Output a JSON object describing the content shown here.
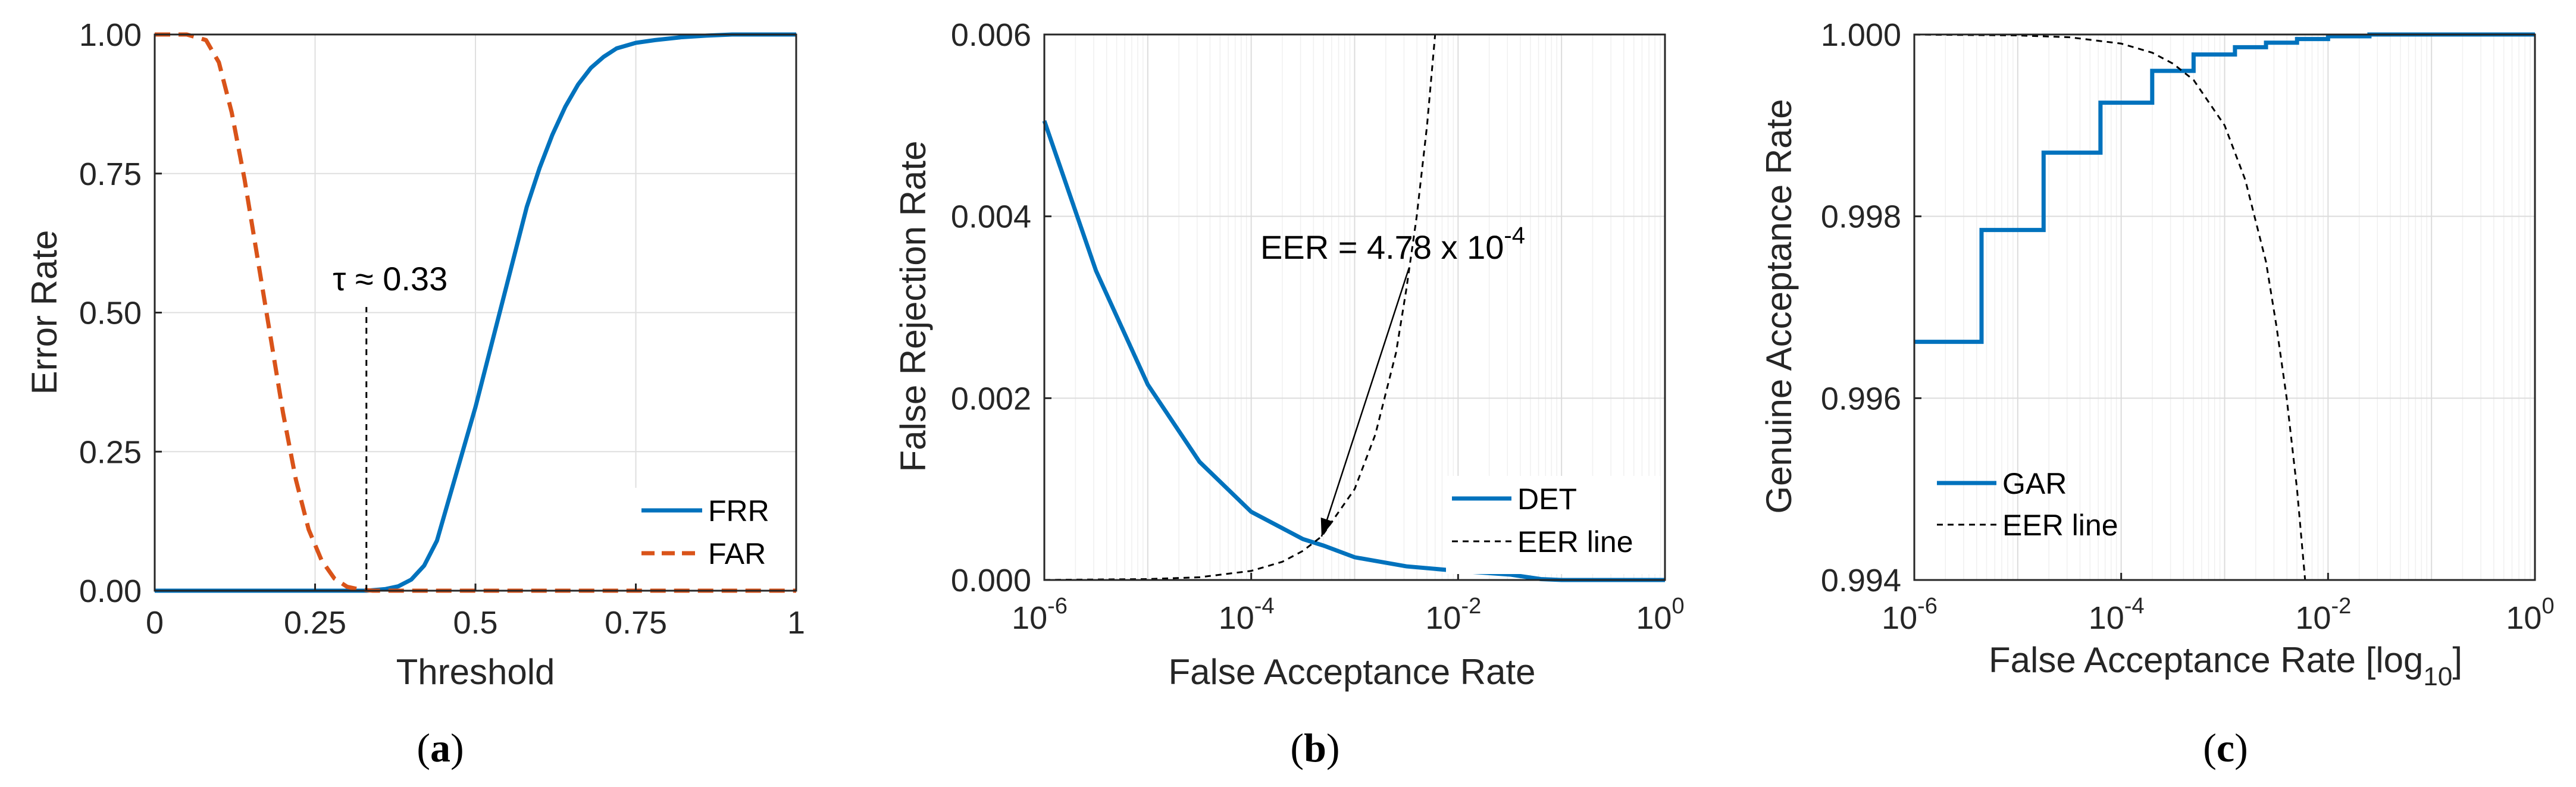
{
  "chart_data": [
    {
      "type": "line",
      "panel": "a",
      "caption": "(a)",
      "caption_letter": "a",
      "xlabel": "Threshold",
      "ylabel": "Error Rate",
      "xlim": [
        0,
        1
      ],
      "ylim": [
        0,
        1
      ],
      "x_ticks": [
        0,
        0.25,
        0.5,
        0.75,
        1
      ],
      "x_tick_labels": [
        "0",
        "0.25",
        "0.5",
        "0.75",
        "1"
      ],
      "y_ticks": [
        0,
        0.25,
        0.5,
        0.75,
        1
      ],
      "y_tick_labels": [
        "0.00",
        "0.25",
        "0.50",
        "0.75",
        "1.00"
      ],
      "grid": true,
      "legend_position": "bottom-right",
      "series": [
        {
          "name": "FRR",
          "style": "solid",
          "color": "#0072BD",
          "x": [
            0,
            0.33,
            0.36,
            0.38,
            0.4,
            0.42,
            0.44,
            0.45,
            0.46,
            0.48,
            0.5,
            0.52,
            0.54,
            0.56,
            0.58,
            0.6,
            0.62,
            0.64,
            0.66,
            0.68,
            0.7,
            0.72,
            0.75,
            0.78,
            0.82,
            0.86,
            0.9,
            1.0
          ],
          "y": [
            0,
            0,
            0.003,
            0.008,
            0.02,
            0.045,
            0.09,
            0.13,
            0.17,
            0.25,
            0.33,
            0.42,
            0.51,
            0.6,
            0.69,
            0.76,
            0.82,
            0.87,
            0.91,
            0.94,
            0.96,
            0.975,
            0.985,
            0.99,
            0.995,
            0.998,
            1.0,
            1.0
          ]
        },
        {
          "name": "FAR",
          "style": "dashed",
          "color": "#D95319",
          "x": [
            0,
            0.05,
            0.08,
            0.1,
            0.12,
            0.14,
            0.16,
            0.18,
            0.2,
            0.22,
            0.24,
            0.26,
            0.28,
            0.3,
            0.32,
            0.34,
            1.0
          ],
          "y": [
            1.0,
            1.0,
            0.99,
            0.95,
            0.86,
            0.74,
            0.6,
            0.46,
            0.32,
            0.2,
            0.11,
            0.055,
            0.022,
            0.007,
            0.002,
            0,
            0
          ]
        }
      ],
      "annotations": [
        {
          "text": "τ ≈ 0.33",
          "x": 0.33,
          "y_from": 0.0,
          "y_to": 0.51
        }
      ]
    },
    {
      "type": "line",
      "panel": "b",
      "caption": "(b)",
      "caption_letter": "b",
      "xlabel": "False Acceptance Rate",
      "ylabel": "False Rejection Rate",
      "xscale": "log",
      "xlim_exp": [
        -6,
        0
      ],
      "ylim": [
        0,
        0.006
      ],
      "x_tick_exponents": [
        -6,
        -4,
        -2,
        0
      ],
      "x_tick_base": "10",
      "x_tick_powers": [
        "-6",
        "-4",
        "-2",
        "0"
      ],
      "y_ticks": [
        0,
        0.002,
        0.004,
        0.006
      ],
      "y_tick_labels": [
        "0.000",
        "0.002",
        "0.004",
        "0.006"
      ],
      "grid": true,
      "minor_grid": true,
      "legend_position": "bottom-right",
      "series": [
        {
          "name": "DET",
          "style": "solid",
          "color": "#0072BD",
          "x_exp": [
            -6,
            -5.5,
            -5,
            -4.5,
            -4,
            -3.5,
            -3.3,
            -3,
            -2.5,
            -2,
            -1.5,
            -1.2,
            -1,
            0
          ],
          "y": [
            0.00505,
            0.0034,
            0.00215,
            0.0013,
            0.00075,
            0.00045,
            0.000378,
            0.00025,
            0.00015,
            0.0001,
            6e-05,
            1e-05,
            0,
            0
          ]
        },
        {
          "name": "EER line",
          "style": "dashed",
          "color": "#000000",
          "x_exp": [
            -6,
            -5,
            -4.5,
            -4,
            -3.7,
            -3.5,
            -3.32,
            -3,
            -2.8,
            -2.6,
            -2.5,
            -2.4,
            -2.3,
            -2.222
          ],
          "y": [
            1e-06,
            1e-05,
            3e-05,
            0.0001,
            0.0002,
            0.00032,
            0.000478,
            0.001,
            0.0016,
            0.0025,
            0.0032,
            0.004,
            0.005,
            0.006
          ]
        }
      ],
      "annotation": {
        "text": "EER = 4.78 x 10",
        "superscript": "-4",
        "arrow_to_x_exp": -3.32,
        "arrow_to_y": 0.000478
      }
    },
    {
      "type": "line",
      "panel": "c",
      "caption": "(c)",
      "caption_letter": "c",
      "xlabel": "False Acceptance Rate [log",
      "xlabel_subscript": "10",
      "xlabel_suffix": "]",
      "ylabel": "Genuine Acceptance Rate",
      "xscale": "log",
      "xlim_exp": [
        -6,
        0
      ],
      "ylim": [
        0.994,
        1.0
      ],
      "x_tick_exponents": [
        -6,
        -4,
        -2,
        0
      ],
      "x_tick_base": "10",
      "x_tick_powers": [
        "-6",
        "-4",
        "-2",
        "0"
      ],
      "y_ticks": [
        0.994,
        0.996,
        0.998,
        1.0
      ],
      "y_tick_labels": [
        "0.994",
        "0.996",
        "0.998",
        "1.000"
      ],
      "grid": true,
      "legend_position": "bottom-left",
      "series": [
        {
          "name": "GAR",
          "style": "step",
          "color": "#0072BD",
          "x_exp": [
            -6,
            -5.35,
            -5.35,
            -4.75,
            -4.75,
            -4.2,
            -4.2,
            -3.7,
            -3.7,
            -3.3,
            -3.3,
            -2.9,
            -2.9,
            -2.6,
            -2.6,
            -2.3,
            -2.3,
            -2.0,
            -2.0,
            -1.6,
            -1.6,
            0
          ],
          "y": [
            0.99662,
            0.99662,
            0.99785,
            0.99785,
            0.9987,
            0.9987,
            0.99925,
            0.99925,
            0.9996,
            0.9996,
            0.99978,
            0.99978,
            0.99986,
            0.99986,
            0.99991,
            0.99991,
            0.99995,
            0.99995,
            0.99998,
            0.99998,
            1.0,
            1.0
          ]
        },
        {
          "name": "EER line",
          "style": "dashed",
          "color": "#000000",
          "x_exp": [
            -6,
            -5,
            -4.5,
            -4,
            -3.7,
            -3.5,
            -3.3,
            -3,
            -2.8,
            -2.6,
            -2.5,
            -2.4,
            -2.3,
            -2.222
          ],
          "y": [
            0.999999,
            0.99999,
            0.99997,
            0.9999,
            0.9998,
            0.99968,
            0.9995,
            0.999,
            0.9984,
            0.9975,
            0.9968,
            0.996,
            0.995,
            0.994
          ]
        }
      ]
    }
  ]
}
